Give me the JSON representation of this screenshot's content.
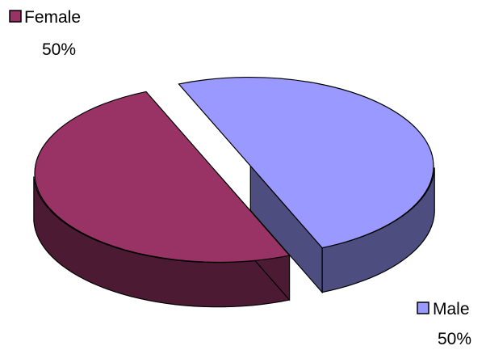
{
  "chart_data": {
    "type": "pie",
    "style": "3d-exploded",
    "categories": [
      "Female",
      "Male"
    ],
    "values": [
      50,
      50
    ],
    "data_labels": [
      "50%",
      "50%"
    ],
    "unit": "%",
    "colors": {
      "Female": {
        "top": "#993366",
        "side": "#4d1a33"
      },
      "Male": {
        "top": "#9999ff",
        "side": "#4d4d80"
      }
    },
    "outline_color": "#000000",
    "label_mode": "category-and-percent-with-legend-key"
  }
}
